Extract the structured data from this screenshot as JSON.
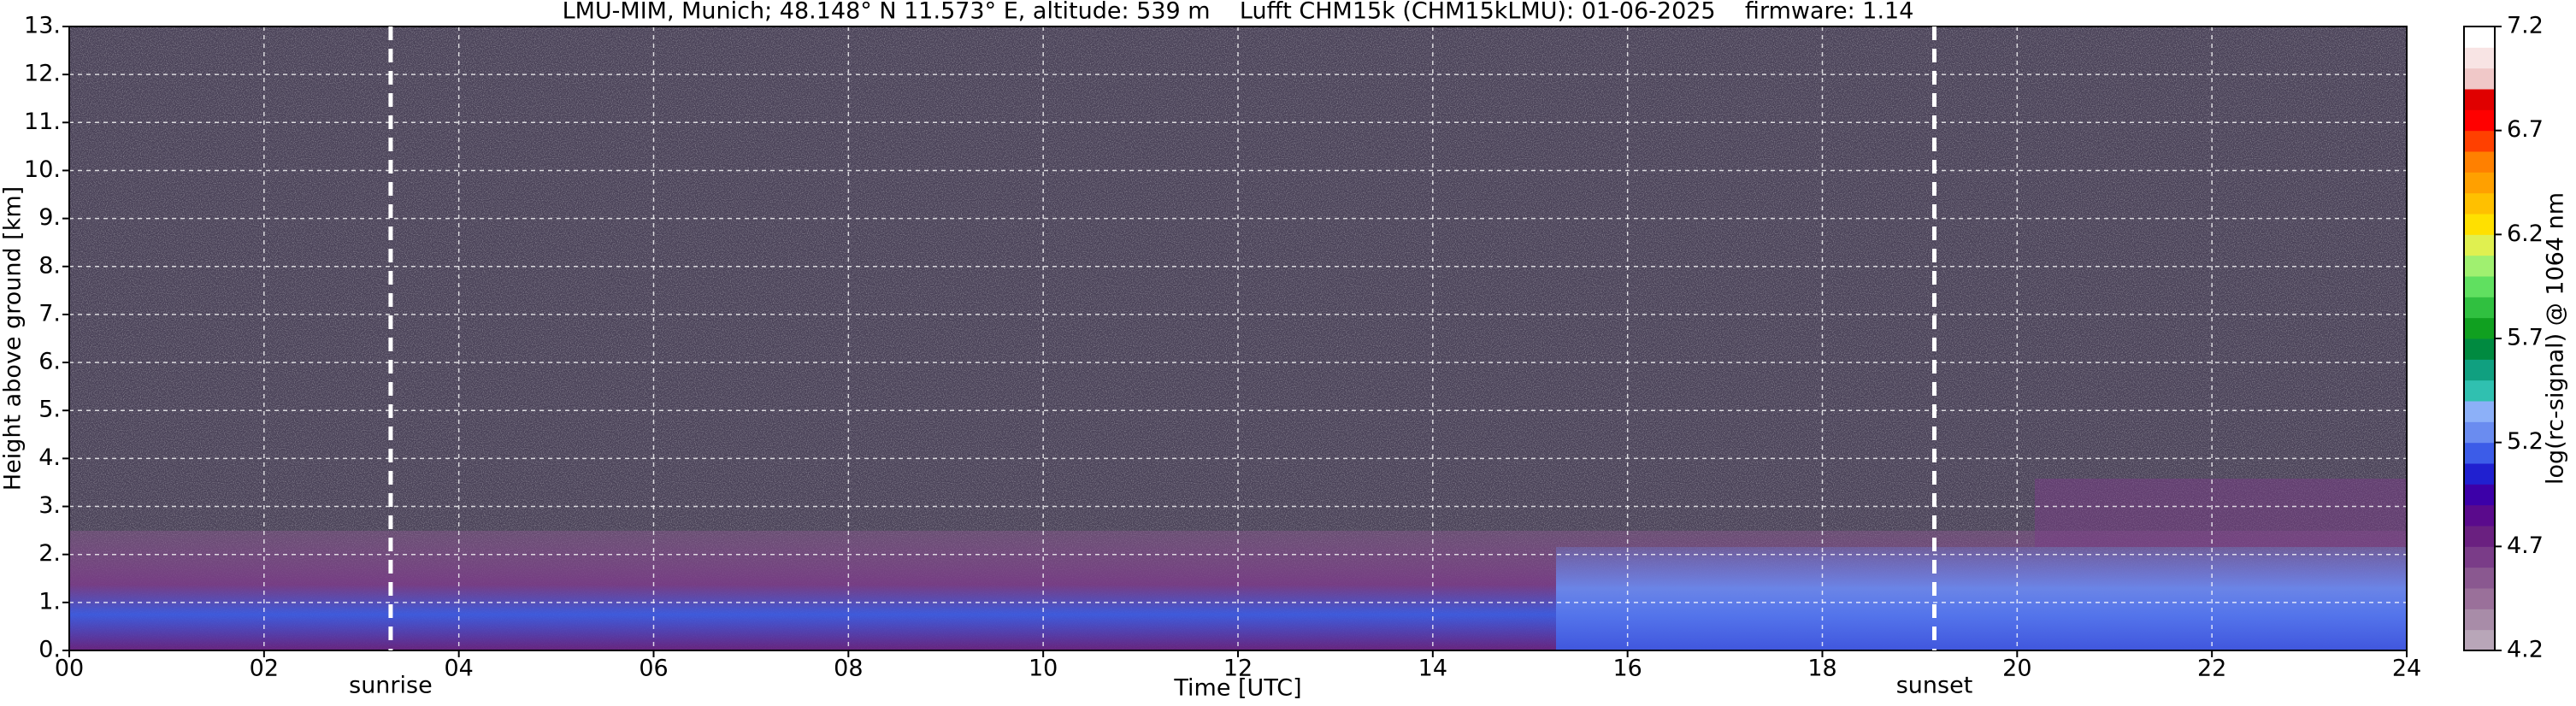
{
  "chart_data": {
    "type": "heatmap",
    "title": "LMU-MIM, Munich; 48.148° N 11.573° E, altitude: 539 m    Lufft CHM15k (CHM15kLMU): 01-06-2025    firmware: 1.14",
    "x_label": "Time [UTC]",
    "y_label": "Height above ground [km]",
    "colorbar_label": "log(rc-signal) @ 1064 nm",
    "xlim": [
      0,
      24
    ],
    "xticks": [
      {
        "value": 0,
        "label": "00"
      },
      {
        "value": 2,
        "label": "02"
      },
      {
        "value": 4,
        "label": "04"
      },
      {
        "value": 6,
        "label": "06"
      },
      {
        "value": 8,
        "label": "08"
      },
      {
        "value": 10,
        "label": "10"
      },
      {
        "value": 12,
        "label": "12"
      },
      {
        "value": 14,
        "label": "14"
      },
      {
        "value": 16,
        "label": "16"
      },
      {
        "value": 18,
        "label": "18"
      },
      {
        "value": 20,
        "label": "20"
      },
      {
        "value": 22,
        "label": "22"
      },
      {
        "value": 24,
        "label": "24"
      }
    ],
    "ylim": [
      0,
      13
    ],
    "yticks": [
      {
        "value": 0,
        "label": "0."
      },
      {
        "value": 1,
        "label": "1."
      },
      {
        "value": 2,
        "label": "2."
      },
      {
        "value": 3,
        "label": "3."
      },
      {
        "value": 4,
        "label": "4."
      },
      {
        "value": 5,
        "label": "5."
      },
      {
        "value": 6,
        "label": "6."
      },
      {
        "value": 7,
        "label": "7."
      },
      {
        "value": 8,
        "label": "8."
      },
      {
        "value": 9,
        "label": "9."
      },
      {
        "value": 10,
        "label": "10."
      },
      {
        "value": 11,
        "label": "11."
      },
      {
        "value": 12,
        "label": "12."
      },
      {
        "value": 13,
        "label": "13."
      }
    ],
    "clim": [
      4.2,
      7.2
    ],
    "cticks": [
      4.2,
      4.7,
      5.2,
      5.7,
      6.2,
      6.7,
      7.2
    ],
    "colormap": [
      "#b8a6b8",
      "#a88ca8",
      "#9a709a",
      "#8a5890",
      "#7a3c88",
      "#6a2080",
      "#5a0a8c",
      "#3c00a8",
      "#2020d0",
      "#3c5ce8",
      "#6a8cf0",
      "#8cb0f8",
      "#30c0b0",
      "#10a080",
      "#008a40",
      "#10a020",
      "#30c040",
      "#60e060",
      "#a0f070",
      "#e0f050",
      "#ffe000",
      "#ffc000",
      "#ffa000",
      "#ff8000",
      "#ff4000",
      "#ff0000",
      "#e00000",
      "#f0c8c8",
      "#f8e4e4",
      "#ffffff"
    ],
    "grid": true,
    "annotations": [
      {
        "text": "sunrise",
        "x": 3.3
      },
      {
        "text": "sunset",
        "x": 19.15
      }
    ]
  }
}
